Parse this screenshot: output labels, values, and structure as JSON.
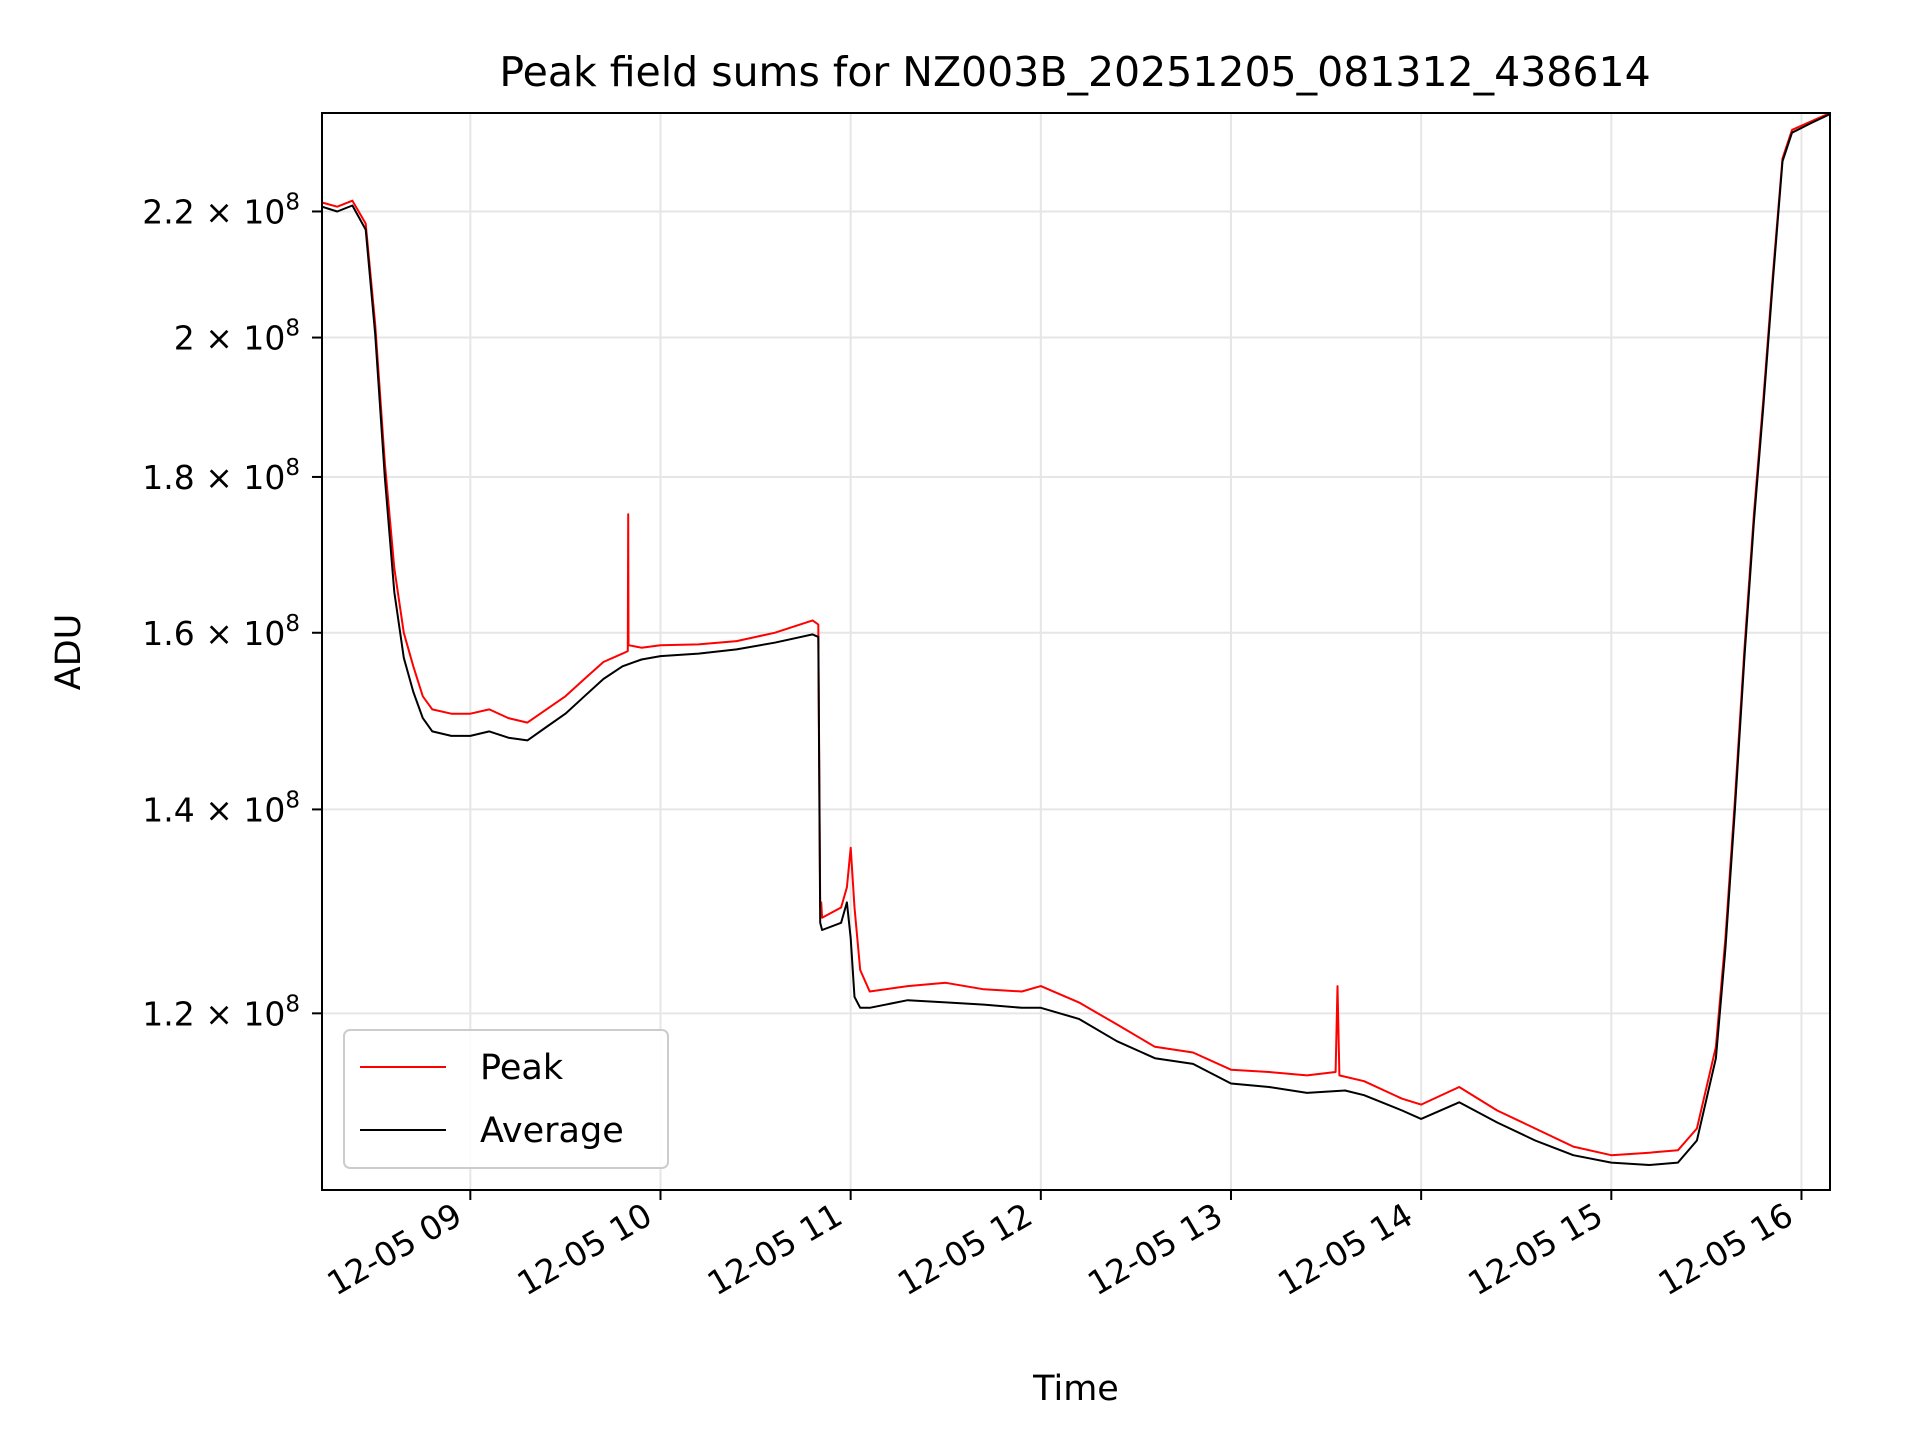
{
  "chart_data": {
    "type": "line",
    "title": "Peak field sums for NZ003B_20251205_081312_438614",
    "xlabel": "Time",
    "ylabel": "ADU",
    "yscale": "log",
    "grid": true,
    "legend_position": "lower-left",
    "x_unit": "hours since 12-05 00:00",
    "xlim": [
      8.22,
      16.15
    ],
    "ylim": [
      105000000,
      237000000
    ],
    "x_ticks": [
      {
        "value": 9,
        "label": "12-05 09"
      },
      {
        "value": 10,
        "label": "12-05 10"
      },
      {
        "value": 11,
        "label": "12-05 11"
      },
      {
        "value": 12,
        "label": "12-05 12"
      },
      {
        "value": 13,
        "label": "12-05 13"
      },
      {
        "value": 14,
        "label": "12-05 14"
      },
      {
        "value": 15,
        "label": "12-05 15"
      },
      {
        "value": 16,
        "label": "12-05 16"
      }
    ],
    "y_ticks": [
      {
        "value": 120000000,
        "mantissa": "1.2",
        "exponent": "8"
      },
      {
        "value": 140000000,
        "mantissa": "1.4",
        "exponent": "8"
      },
      {
        "value": 160000000,
        "mantissa": "1.6",
        "exponent": "8"
      },
      {
        "value": 180000000,
        "mantissa": "1.8",
        "exponent": "8"
      },
      {
        "value": 200000000,
        "mantissa": "2",
        "exponent": "8"
      },
      {
        "value": 220000000,
        "mantissa": "2.2",
        "exponent": "8"
      }
    ],
    "times_symbol": "×",
    "tick_base": "10",
    "series": [
      {
        "name": "Peak",
        "color": "#ff0000",
        "x": [
          8.22,
          8.3,
          8.38,
          8.45,
          8.5,
          8.55,
          8.6,
          8.65,
          8.7,
          8.75,
          8.8,
          8.9,
          9.0,
          9.1,
          9.2,
          9.3,
          9.4,
          9.5,
          9.6,
          9.7,
          9.8,
          9.828,
          9.83,
          9.832,
          9.9,
          10.0,
          10.2,
          10.4,
          10.6,
          10.8,
          10.83,
          10.84,
          10.845,
          10.85,
          10.95,
          10.98,
          11.0,
          11.02,
          11.05,
          11.1,
          11.3,
          11.5,
          11.7,
          11.9,
          12.0,
          12.2,
          12.4,
          12.6,
          12.8,
          13.0,
          13.2,
          13.4,
          13.55,
          13.56,
          13.57,
          13.7,
          13.9,
          14.0,
          14.2,
          14.4,
          14.6,
          14.8,
          15.0,
          15.2,
          15.35,
          15.45,
          15.55,
          15.6,
          15.65,
          15.7,
          15.75,
          15.8,
          15.85,
          15.9,
          15.95,
          16.05,
          16.15
        ],
        "values": [
          221500000,
          220800000,
          221800000,
          218000000,
          202000000,
          182000000,
          168000000,
          160000000,
          156000000,
          152500000,
          151000000,
          150500000,
          150500000,
          151000000,
          150000000,
          149500000,
          151000000,
          152500000,
          154500000,
          156500000,
          157500000,
          157800000,
          175000000,
          158500000,
          158200000,
          158500000,
          158600000,
          159000000,
          160000000,
          161500000,
          161000000,
          130000000,
          130500000,
          129000000,
          130000000,
          132000000,
          136000000,
          130000000,
          124000000,
          122000000,
          122500000,
          122800000,
          122200000,
          122000000,
          122500000,
          121000000,
          119000000,
          117000000,
          116500000,
          115000000,
          114800000,
          114500000,
          114800000,
          122500000,
          114500000,
          114000000,
          112500000,
          112000000,
          113500000,
          111500000,
          110000000,
          108500000,
          107800000,
          108000000,
          108200000,
          110000000,
          117000000,
          127000000,
          141000000,
          158000000,
          175000000,
          191000000,
          210000000,
          229000000,
          234000000,
          235500000,
          237000000
        ]
      },
      {
        "name": "Average",
        "color": "#000000",
        "x": [
          8.22,
          8.3,
          8.38,
          8.45,
          8.5,
          8.55,
          8.6,
          8.65,
          8.7,
          8.75,
          8.8,
          8.9,
          9.0,
          9.1,
          9.2,
          9.3,
          9.4,
          9.5,
          9.6,
          9.7,
          9.8,
          9.9,
          10.0,
          10.2,
          10.4,
          10.6,
          10.8,
          10.83,
          10.84,
          10.85,
          10.95,
          10.98,
          11.0,
          11.02,
          11.05,
          11.1,
          11.3,
          11.5,
          11.7,
          11.9,
          12.0,
          12.2,
          12.4,
          12.6,
          12.8,
          13.0,
          13.2,
          13.4,
          13.6,
          13.7,
          13.9,
          14.0,
          14.2,
          14.4,
          14.6,
          14.8,
          15.0,
          15.2,
          15.35,
          15.45,
          15.55,
          15.6,
          15.65,
          15.7,
          15.75,
          15.8,
          15.85,
          15.9,
          15.95,
          16.05,
          16.15
        ],
        "values": [
          220800000,
          220000000,
          221000000,
          217000000,
          200500000,
          180000000,
          165000000,
          157000000,
          153000000,
          150000000,
          148500000,
          148000000,
          148000000,
          148500000,
          147800000,
          147500000,
          149000000,
          150500000,
          152500000,
          154500000,
          156000000,
          156800000,
          157200000,
          157500000,
          158000000,
          158800000,
          159800000,
          159500000,
          128500000,
          127800000,
          128500000,
          130500000,
          127000000,
          121500000,
          120500000,
          120500000,
          121200000,
          121000000,
          120800000,
          120500000,
          120500000,
          119500000,
          117500000,
          116000000,
          115500000,
          113800000,
          113500000,
          113000000,
          113200000,
          112800000,
          111500000,
          110800000,
          112200000,
          110500000,
          109000000,
          107800000,
          107200000,
          107000000,
          107200000,
          109000000,
          116000000,
          126000000,
          140000000,
          157000000,
          174000000,
          190000000,
          209000000,
          228500000,
          233500000,
          235200000,
          236800000
        ]
      }
    ]
  }
}
